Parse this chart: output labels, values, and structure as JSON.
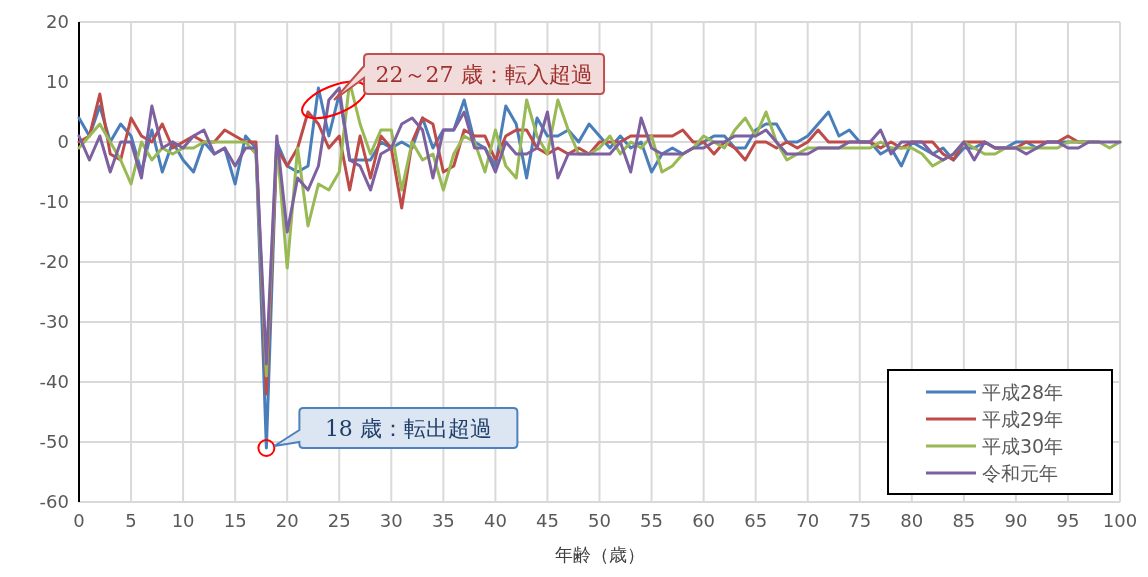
{
  "chart_data": {
    "type": "line",
    "xlabel": "年齢（歳）",
    "x": [
      0,
      1,
      2,
      3,
      4,
      5,
      6,
      7,
      8,
      9,
      10,
      11,
      12,
      13,
      14,
      15,
      16,
      17,
      18,
      19,
      20,
      21,
      22,
      23,
      24,
      25,
      26,
      27,
      28,
      29,
      30,
      31,
      32,
      33,
      34,
      35,
      36,
      37,
      38,
      39,
      40,
      41,
      42,
      43,
      44,
      45,
      46,
      47,
      48,
      49,
      50,
      51,
      52,
      53,
      54,
      55,
      56,
      57,
      58,
      59,
      60,
      61,
      62,
      63,
      64,
      65,
      66,
      67,
      68,
      69,
      70,
      71,
      72,
      73,
      74,
      75,
      76,
      77,
      78,
      79,
      80,
      81,
      82,
      83,
      84,
      85,
      86,
      87,
      88,
      89,
      90,
      91,
      92,
      93,
      94,
      95,
      96,
      97,
      98,
      99,
      100
    ],
    "xlim": [
      0,
      100
    ],
    "xticks": [
      0,
      5,
      10,
      15,
      20,
      25,
      30,
      35,
      40,
      45,
      50,
      55,
      60,
      65,
      70,
      75,
      80,
      85,
      90,
      95,
      100
    ],
    "ylim": [
      -60,
      20
    ],
    "yticks": [
      -60,
      -50,
      -40,
      -30,
      -20,
      -10,
      0,
      10,
      20
    ],
    "grid": true,
    "legend": "bottom right",
    "marker": "none",
    "line_style": "solid",
    "series": [
      {
        "name": "平成28年",
        "color": "#4a7ebb",
        "values": [
          4,
          1,
          6,
          0,
          3,
          1,
          -5,
          2,
          -5,
          0,
          -3,
          -5,
          0,
          -2,
          -1,
          -7,
          1,
          -1,
          -51,
          0,
          -4,
          -5,
          -4,
          9,
          1,
          8,
          -3,
          -3,
          -3,
          0,
          -1,
          0,
          -1,
          4,
          -1,
          2,
          2,
          7,
          0,
          -1,
          -4,
          6,
          3,
          -6,
          4,
          1,
          1,
          2,
          0,
          3,
          1,
          -1,
          1,
          -1,
          0,
          -5,
          -2,
          -1,
          -2,
          -1,
          0,
          1,
          1,
          -1,
          -1,
          2,
          3,
          3,
          0,
          0,
          1,
          3,
          5,
          1,
          2,
          0,
          0,
          -2,
          -1,
          -4,
          0,
          -1,
          -2,
          -1,
          -3,
          -1,
          -1,
          0,
          -1,
          -1,
          0,
          0,
          -1,
          0,
          0,
          0,
          0,
          0,
          0,
          null,
          null
        ]
      },
      {
        "name": "平成29年",
        "color": "#be4b48",
        "values": [
          0,
          1,
          8,
          -2,
          -3,
          4,
          1,
          0,
          3,
          -1,
          0,
          1,
          0,
          0,
          2,
          1,
          0,
          0,
          -42,
          -1,
          -4,
          -1,
          5,
          3,
          -1,
          1,
          -8,
          1,
          -6,
          1,
          -1,
          -11,
          0,
          4,
          3,
          -5,
          -4,
          2,
          1,
          1,
          -3,
          1,
          2,
          2,
          -1,
          -2,
          -1,
          -2,
          -1,
          -2,
          0,
          0,
          0,
          1,
          1,
          1,
          1,
          1,
          2,
          0,
          0,
          -2,
          0,
          -1,
          -3,
          0,
          0,
          -1,
          0,
          -1,
          0,
          2,
          0,
          0,
          0,
          0,
          0,
          -1,
          0,
          -1,
          0,
          0,
          0,
          -2,
          -3,
          0,
          0,
          0,
          -1,
          -1,
          -1,
          0,
          0,
          0,
          0,
          1,
          0,
          0,
          null,
          null,
          null
        ]
      },
      {
        "name": "平成30年",
        "color": "#98b954",
        "values": [
          -1,
          1,
          3,
          0,
          -3,
          -7,
          0,
          -3,
          -1,
          -2,
          -1,
          -1,
          0,
          0,
          0,
          0,
          0,
          -2,
          -39,
          0,
          -21,
          -1,
          -14,
          -7,
          -8,
          -5,
          10,
          3,
          -2,
          2,
          2,
          -8,
          0,
          -3,
          -2,
          -8,
          -2,
          1,
          0,
          -5,
          2,
          -4,
          -6,
          7,
          1,
          -2,
          7,
          2,
          -2,
          -2,
          -1,
          1,
          -2,
          0,
          -1,
          1,
          -5,
          -4,
          -2,
          -1,
          1,
          0,
          -1,
          2,
          4,
          1,
          5,
          0,
          -3,
          -2,
          -1,
          -1,
          -1,
          -1,
          -1,
          -1,
          -1,
          0,
          -1,
          -1,
          -1,
          -2,
          -4,
          -3,
          -2,
          0,
          -1,
          -2,
          -2,
          -1,
          -1,
          -1,
          -1,
          -1,
          -1,
          0,
          0,
          0,
          0,
          -1,
          0
        ]
      },
      {
        "name": "令和元年",
        "color": "#7d60a0",
        "values": [
          1,
          -3,
          1,
          -5,
          0,
          0,
          -6,
          6,
          -1,
          0,
          -1,
          1,
          2,
          -2,
          -1,
          -4,
          -1,
          -1,
          -37,
          1,
          -15,
          -6,
          -8,
          -4,
          7,
          9,
          -3,
          -4,
          -8,
          -2,
          -1,
          3,
          4,
          2,
          -6,
          2,
          2,
          5,
          -1,
          -1,
          -5,
          0,
          -2,
          -2,
          -1,
          5,
          -6,
          -2,
          -2,
          -2,
          -2,
          -2,
          0,
          -5,
          4,
          -1,
          -2,
          -2,
          -2,
          -1,
          -1,
          0,
          0,
          1,
          1,
          1,
          2,
          0,
          -2,
          -2,
          -2,
          -1,
          -1,
          -1,
          0,
          0,
          0,
          2,
          -2,
          0,
          0,
          0,
          -2,
          -3,
          -2,
          0,
          -3,
          0,
          -1,
          -1,
          -1,
          -2,
          -1,
          0,
          0,
          -1,
          -1,
          0,
          0,
          0,
          0
        ]
      }
    ],
    "annotations": [
      {
        "text": "22～27 歳：転入超過",
        "x": 24.5,
        "y": 7
      },
      {
        "text": "18 歳：転出超過",
        "x": 18,
        "y": -51
      }
    ]
  }
}
